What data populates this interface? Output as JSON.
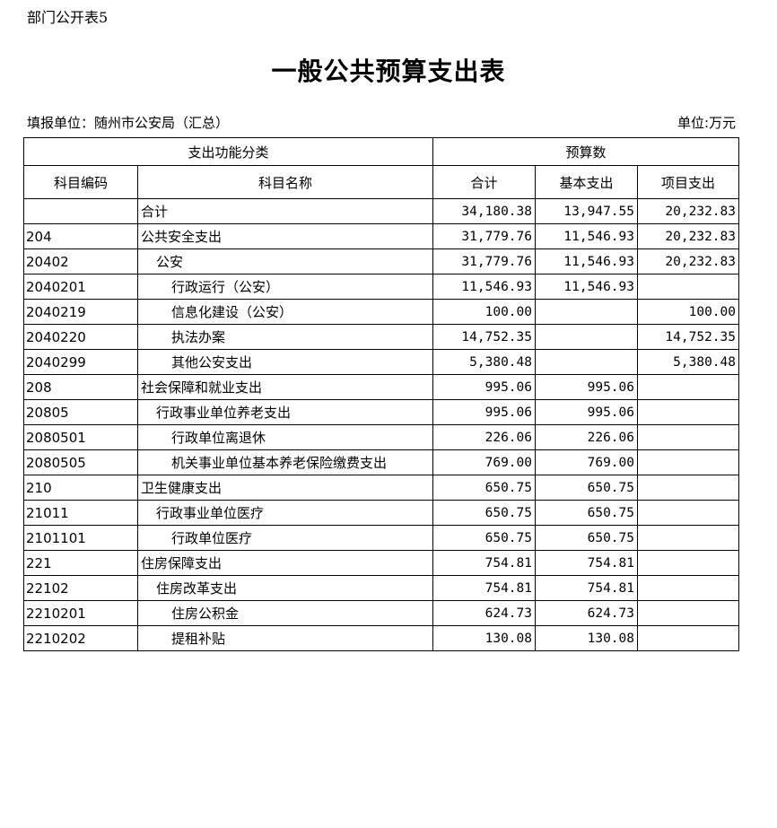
{
  "doc_label": "部门公开表5",
  "title": "一般公共预算支出表",
  "reporting_unit": "填报单位：随州市公安局（汇总）",
  "unit": "单位:万元",
  "headers": {
    "group_function": "支出功能分类",
    "group_budget": "预算数",
    "code": "科目编码",
    "name": "科目名称",
    "total": "合计",
    "basic": "基本支出",
    "project": "项目支出"
  },
  "rows": [
    {
      "code": "",
      "name": "合计",
      "level": 0,
      "total": "34,180.38",
      "basic": "13,947.55",
      "project": "20,232.83"
    },
    {
      "code": "204",
      "name": "公共安全支出",
      "level": 0,
      "total": "31,779.76",
      "basic": "11,546.93",
      "project": "20,232.83"
    },
    {
      "code": "20402",
      "name": "公安",
      "level": 1,
      "total": "31,779.76",
      "basic": "11,546.93",
      "project": "20,232.83"
    },
    {
      "code": "2040201",
      "name": "行政运行（公安）",
      "level": 2,
      "total": "11,546.93",
      "basic": "11,546.93",
      "project": ""
    },
    {
      "code": "2040219",
      "name": "信息化建设（公安）",
      "level": 2,
      "total": "100.00",
      "basic": "",
      "project": "100.00"
    },
    {
      "code": "2040220",
      "name": "执法办案",
      "level": 2,
      "total": "14,752.35",
      "basic": "",
      "project": "14,752.35"
    },
    {
      "code": "2040299",
      "name": "其他公安支出",
      "level": 2,
      "total": "5,380.48",
      "basic": "",
      "project": "5,380.48"
    },
    {
      "code": "208",
      "name": "社会保障和就业支出",
      "level": 0,
      "total": "995.06",
      "basic": "995.06",
      "project": ""
    },
    {
      "code": "20805",
      "name": "行政事业单位养老支出",
      "level": 1,
      "total": "995.06",
      "basic": "995.06",
      "project": ""
    },
    {
      "code": "2080501",
      "name": "行政单位离退休",
      "level": 2,
      "total": "226.06",
      "basic": "226.06",
      "project": ""
    },
    {
      "code": "2080505",
      "name": "机关事业单位基本养老保险缴费支出",
      "level": 2,
      "total": "769.00",
      "basic": "769.00",
      "project": ""
    },
    {
      "code": "210",
      "name": "卫生健康支出",
      "level": 0,
      "total": "650.75",
      "basic": "650.75",
      "project": ""
    },
    {
      "code": "21011",
      "name": "行政事业单位医疗",
      "level": 1,
      "total": "650.75",
      "basic": "650.75",
      "project": ""
    },
    {
      "code": "2101101",
      "name": "行政单位医疗",
      "level": 2,
      "total": "650.75",
      "basic": "650.75",
      "project": ""
    },
    {
      "code": "221",
      "name": "住房保障支出",
      "level": 0,
      "total": "754.81",
      "basic": "754.81",
      "project": ""
    },
    {
      "code": "22102",
      "name": "住房改革支出",
      "level": 1,
      "total": "754.81",
      "basic": "754.81",
      "project": ""
    },
    {
      "code": "2210201",
      "name": "住房公积金",
      "level": 2,
      "total": "624.73",
      "basic": "624.73",
      "project": ""
    },
    {
      "code": "2210202",
      "name": "提租补贴",
      "level": 2,
      "total": "130.08",
      "basic": "130.08",
      "project": ""
    }
  ]
}
